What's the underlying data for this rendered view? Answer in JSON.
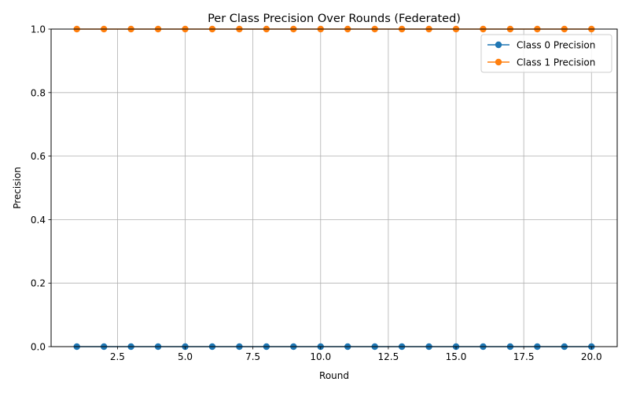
{
  "chart_data": {
    "type": "line",
    "title": "Per Class Precision Over Rounds (Federated)",
    "xlabel": "Round",
    "ylabel": "Precision",
    "x": [
      1,
      2,
      3,
      4,
      5,
      6,
      7,
      8,
      9,
      10,
      11,
      12,
      13,
      14,
      15,
      16,
      17,
      18,
      19,
      20
    ],
    "xlim": [
      0.05,
      20.95
    ],
    "ylim": [
      0,
      1
    ],
    "xticks": [
      2.5,
      5.0,
      7.5,
      10.0,
      12.5,
      15.0,
      17.5,
      20.0
    ],
    "xtick_labels": [
      "2.5",
      "5.0",
      "7.5",
      "10.0",
      "12.5",
      "15.0",
      "17.5",
      "20.0"
    ],
    "yticks": [
      0.0,
      0.2,
      0.4,
      0.6,
      0.8,
      1.0
    ],
    "ytick_labels": [
      "0.0",
      "0.2",
      "0.4",
      "0.6",
      "0.8",
      "1.0"
    ],
    "grid": true,
    "legend_position": "top-right",
    "series": [
      {
        "name": "Class 0 Precision",
        "color": "#1f77b4",
        "marker": "circle",
        "values": [
          0,
          0,
          0,
          0,
          0,
          0,
          0,
          0,
          0,
          0,
          0,
          0,
          0,
          0,
          0,
          0,
          0,
          0,
          0,
          0
        ]
      },
      {
        "name": "Class 1 Precision",
        "color": "#ff7f0e",
        "marker": "circle",
        "values": [
          1,
          1,
          1,
          1,
          1,
          1,
          1,
          1,
          1,
          1,
          1,
          1,
          1,
          1,
          1,
          1,
          1,
          1,
          1,
          1
        ]
      }
    ]
  }
}
